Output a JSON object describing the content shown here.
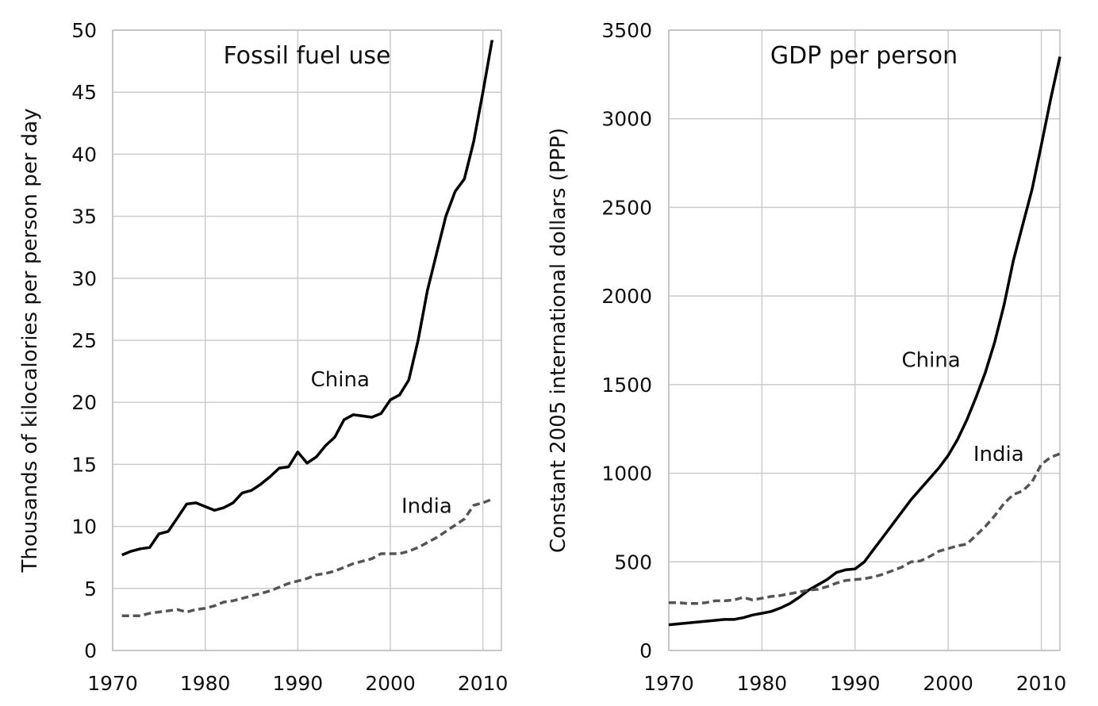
{
  "chart_data": [
    {
      "type": "line",
      "title": "Fossil fuel use",
      "ylabel": "Thousands of kilocalories per person per day",
      "xlabel": "",
      "xlim": [
        1970,
        2012
      ],
      "ylim": [
        0,
        50
      ],
      "xticks": [
        1970,
        1980,
        1990,
        2000,
        2010
      ],
      "yticks": [
        0,
        5,
        10,
        15,
        20,
        25,
        30,
        35,
        40,
        45,
        50
      ],
      "grid": true,
      "series": [
        {
          "name": "China",
          "style": "solid",
          "color": "#000000",
          "x": [
            1971,
            1972,
            1973,
            1974,
            1975,
            1976,
            1977,
            1978,
            1979,
            1980,
            1981,
            1982,
            1983,
            1984,
            1985,
            1986,
            1987,
            1988,
            1989,
            1990,
            1991,
            1992,
            1993,
            1994,
            1995,
            1996,
            1997,
            1998,
            1999,
            2000,
            2001,
            2002,
            2003,
            2004,
            2005,
            2006,
            2007,
            2008,
            2009,
            2010,
            2011
          ],
          "y": [
            7.7,
            8.0,
            8.2,
            8.3,
            9.4,
            9.6,
            10.7,
            11.8,
            11.9,
            11.6,
            11.3,
            11.5,
            11.9,
            12.7,
            12.9,
            13.4,
            14.0,
            14.7,
            14.8,
            16.0,
            15.1,
            15.6,
            16.5,
            17.2,
            18.6,
            19.0,
            18.9,
            18.8,
            19.1,
            20.2,
            20.6,
            21.8,
            25.0,
            29.0,
            32.0,
            35.0,
            37.0,
            38.0,
            41.0,
            45.0,
            49.2
          ]
        },
        {
          "name": "India",
          "style": "dashed",
          "color": "#555555",
          "x": [
            1971,
            1972,
            1973,
            1974,
            1975,
            1976,
            1977,
            1978,
            1979,
            1980,
            1981,
            1982,
            1983,
            1984,
            1985,
            1986,
            1987,
            1988,
            1989,
            1990,
            1991,
            1992,
            1993,
            1994,
            1995,
            1996,
            1997,
            1998,
            1999,
            2000,
            2001,
            2002,
            2003,
            2004,
            2005,
            2006,
            2007,
            2008,
            2009,
            2010,
            2011
          ],
          "y": [
            2.8,
            2.8,
            2.8,
            3.0,
            3.1,
            3.2,
            3.3,
            3.1,
            3.3,
            3.4,
            3.6,
            3.9,
            4.0,
            4.2,
            4.4,
            4.6,
            4.8,
            5.1,
            5.4,
            5.6,
            5.8,
            6.1,
            6.2,
            6.4,
            6.7,
            7.0,
            7.2,
            7.4,
            7.8,
            7.8,
            7.8,
            8.0,
            8.3,
            8.7,
            9.1,
            9.6,
            10.1,
            10.6,
            11.7,
            11.9,
            12.2
          ]
        }
      ],
      "annotations": [
        {
          "text": "China",
          "x": 1991.4,
          "y": 21.3
        },
        {
          "text": "India",
          "x": 2001.2,
          "y": 11.1
        }
      ]
    },
    {
      "type": "line",
      "title": "GDP per person",
      "ylabel": "Constant 2005 international dollars (PPP)",
      "xlabel": "",
      "xlim": [
        1970,
        2012
      ],
      "ylim": [
        0,
        3500
      ],
      "xticks": [
        1970,
        1980,
        1990,
        2000,
        2010
      ],
      "yticks": [
        0,
        500,
        1000,
        1500,
        2000,
        2500,
        3000,
        3500
      ],
      "grid": true,
      "series": [
        {
          "name": "China",
          "style": "solid",
          "color": "#000000",
          "x": [
            1970,
            1971,
            1972,
            1973,
            1974,
            1975,
            1976,
            1977,
            1978,
            1979,
            1980,
            1981,
            1982,
            1983,
            1984,
            1985,
            1986,
            1987,
            1988,
            1989,
            1990,
            1991,
            1992,
            1993,
            1994,
            1995,
            1996,
            1997,
            1998,
            1999,
            2000,
            2001,
            2002,
            2003,
            2004,
            2005,
            2006,
            2007,
            2008,
            2009,
            2010,
            2011,
            2012
          ],
          "y": [
            145,
            150,
            155,
            160,
            165,
            170,
            175,
            175,
            185,
            200,
            210,
            220,
            240,
            265,
            300,
            340,
            370,
            400,
            440,
            455,
            460,
            500,
            570,
            640,
            710,
            780,
            850,
            910,
            970,
            1030,
            1100,
            1190,
            1300,
            1430,
            1570,
            1740,
            1950,
            2200,
            2400,
            2600,
            2850,
            3110,
            3350
          ]
        },
        {
          "name": "India",
          "style": "dashed",
          "color": "#555555",
          "x": [
            1970,
            1971,
            1972,
            1973,
            1974,
            1975,
            1976,
            1977,
            1978,
            1979,
            1980,
            1981,
            1982,
            1983,
            1984,
            1985,
            1986,
            1987,
            1988,
            1989,
            1990,
            1991,
            1992,
            1993,
            1994,
            1995,
            1996,
            1997,
            1998,
            1999,
            2000,
            2001,
            2002,
            2003,
            2004,
            2005,
            2006,
            2007,
            2008,
            2009,
            2010,
            2011,
            2012
          ],
          "y": [
            270,
            270,
            265,
            265,
            270,
            280,
            280,
            285,
            300,
            285,
            295,
            305,
            310,
            320,
            330,
            340,
            345,
            360,
            380,
            395,
            400,
            405,
            415,
            430,
            450,
            470,
            500,
            505,
            530,
            560,
            575,
            590,
            600,
            650,
            700,
            760,
            830,
            880,
            900,
            950,
            1050,
            1090,
            1110
          ]
        }
      ],
      "annotations": [
        {
          "text": "China",
          "x": 1995.0,
          "y": 1600
        },
        {
          "text": "India",
          "x": 2002.7,
          "y": 1070
        }
      ]
    }
  ]
}
